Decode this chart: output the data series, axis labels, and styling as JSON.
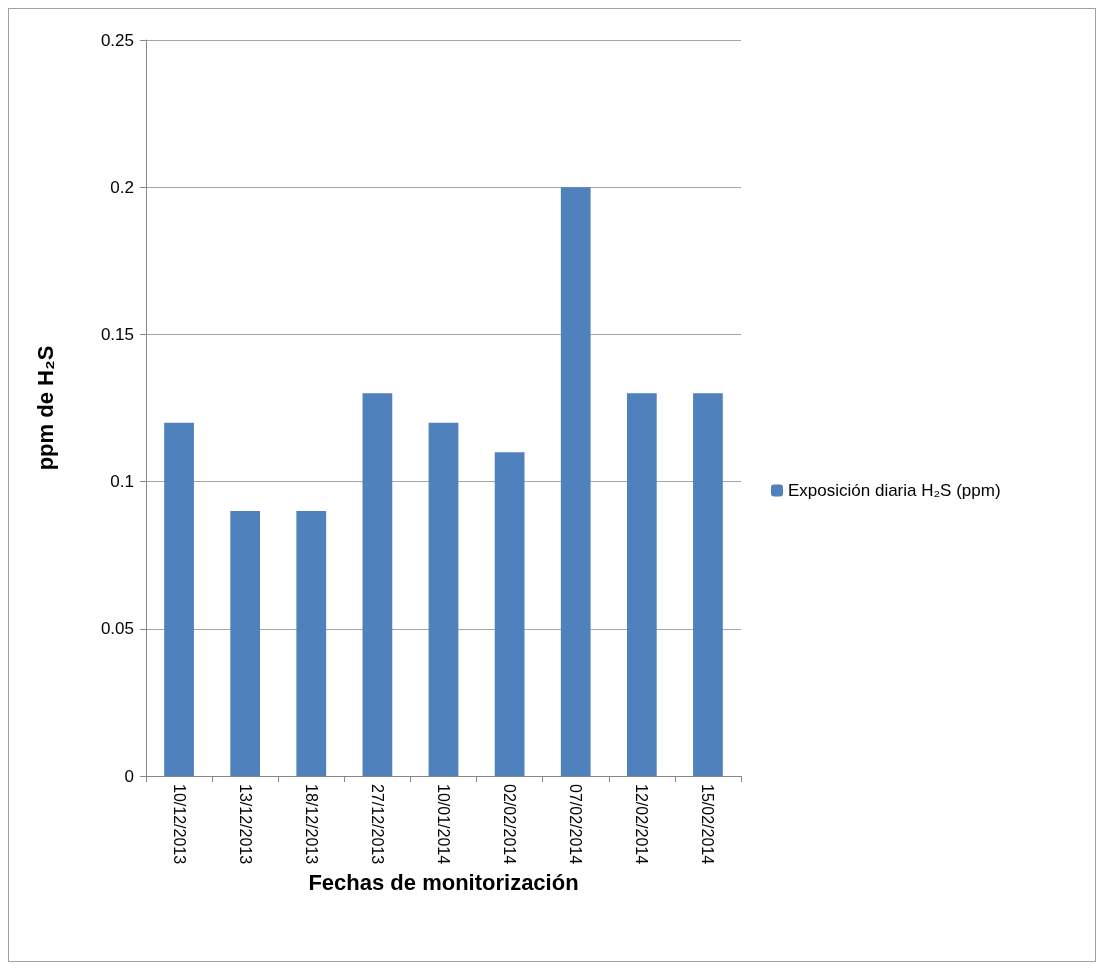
{
  "chart_data": {
    "type": "bar",
    "xlabel": "Fechas de monitorización",
    "ylabel": "ppm de H₂S",
    "categories": [
      "10/12/2013",
      "13/12/2013",
      "18/12/2013",
      "27/12/2013",
      "10/01/2014",
      "02/02/2014",
      "07/02/2014",
      "12/02/2014",
      "15/02/2014"
    ],
    "series": [
      {
        "name": "Exposición diaria H₂S (ppm)",
        "color": "#4f81bd",
        "values": [
          0.12,
          0.09,
          0.09,
          0.13,
          0.12,
          0.11,
          0.2,
          0.13,
          0.13
        ]
      }
    ],
    "ylim": [
      0,
      0.25
    ],
    "yticks": [
      0,
      0.05,
      0.1,
      0.15,
      0.2,
      0.25
    ],
    "grid": "y",
    "legend": "right"
  }
}
